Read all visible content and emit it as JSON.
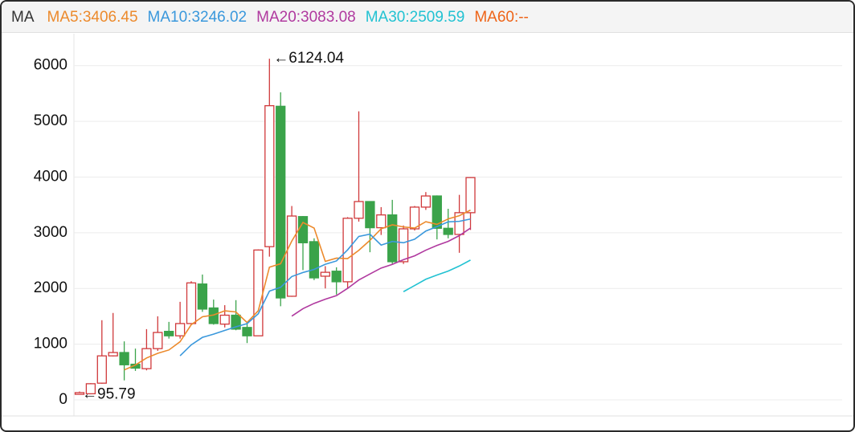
{
  "chart_data": {
    "type": "candlestick",
    "legend_title": "MA",
    "categories": [
      null,
      null,
      null,
      null,
      null,
      null,
      null,
      null,
      null,
      null,
      null,
      null,
      null,
      null,
      null,
      null,
      null,
      null,
      null,
      null,
      null,
      null,
      null,
      null,
      null,
      null,
      null,
      null,
      null,
      null,
      null,
      null,
      null,
      null,
      null,
      null
    ],
    "open": [
      100,
      110,
      300,
      790,
      850,
      640,
      560,
      920,
      1230,
      1150,
      1370,
      2080,
      1650,
      1360,
      1520,
      1300,
      1150,
      2750,
      5270,
      1860,
      3290,
      2840,
      2220,
      2310,
      2120,
      3260,
      3560,
      3090,
      3320,
      2480,
      3070,
      3460,
      3660,
      3080,
      2970,
      3360
    ],
    "close": [
      130,
      290,
      790,
      850,
      630,
      570,
      920,
      1210,
      1150,
      1370,
      2100,
      1630,
      1370,
      1520,
      1270,
      1150,
      2690,
      5280,
      1830,
      3300,
      2820,
      2190,
      2290,
      2120,
      3260,
      3560,
      3090,
      3320,
      2480,
      3070,
      3460,
      3660,
      3080,
      2970,
      3360,
      3990
    ],
    "high": [
      150,
      300,
      1430,
      1560,
      1050,
      920,
      1270,
      1500,
      1400,
      1760,
      2130,
      2250,
      1800,
      1700,
      1790,
      1400,
      2700,
      6124.04,
      5520,
      3480,
      3300,
      2900,
      2400,
      2380,
      3280,
      5180,
      3560,
      3460,
      3590,
      3130,
      3480,
      3730,
      3670,
      3430,
      3680,
      4000
    ],
    "low": [
      95.79,
      100,
      290,
      780,
      350,
      520,
      530,
      880,
      1100,
      1100,
      1360,
      1580,
      1350,
      1300,
      1250,
      1020,
      1150,
      2570,
      1680,
      1850,
      2330,
      2150,
      2000,
      1890,
      1990,
      3200,
      2650,
      2960,
      2440,
      2440,
      3040,
      3410,
      2880,
      2900,
      2640,
      3050
    ],
    "up_color": "#d0393b",
    "down_color": "#3aa34a",
    "series": [
      {
        "name": "MA5:3406.45",
        "color": "#ec8a2c",
        "values": [
          null,
          null,
          null,
          null,
          538,
          626,
          752,
          836,
          896,
          1044,
          1350,
          1492,
          1524,
          1598,
          1578,
          1388,
          1600,
          2382,
          2444,
          2850,
          3184,
          3084,
          2486,
          2544,
          2536,
          2684,
          2864,
          3070,
          3142,
          3104,
          3084,
          3198,
          3150,
          3248,
          3306,
          3406.45
        ]
      },
      {
        "name": "MA10:3246.02",
        "color": "#3a98dc",
        "values": [
          null,
          null,
          null,
          null,
          null,
          null,
          null,
          null,
          null,
          791,
          988,
          1122,
          1180,
          1247,
          1311,
          1369,
          1546,
          1953,
          2021,
          2214,
          2286,
          2342,
          2434,
          2494,
          2693,
          2934,
          2974,
          2778,
          2843,
          2820,
          2884,
          3031,
          3110,
          3195,
          3205,
          3246.02
        ]
      },
      {
        "name": "MA20:3083.08",
        "color": "#b0399f",
        "values": [
          null,
          null,
          null,
          null,
          null,
          null,
          null,
          null,
          null,
          null,
          null,
          null,
          null,
          null,
          null,
          null,
          null,
          null,
          null,
          1503,
          1637,
          1732,
          1807,
          1871,
          2002,
          2152,
          2260,
          2366,
          2432,
          2517,
          2585,
          2687,
          2772,
          2845,
          2949,
          3083.08
        ]
      },
      {
        "name": "MA30:2509.59",
        "color": "#22c2d2",
        "values": [
          null,
          null,
          null,
          null,
          null,
          null,
          null,
          null,
          null,
          null,
          null,
          null,
          null,
          null,
          null,
          null,
          null,
          null,
          null,
          null,
          null,
          null,
          null,
          null,
          null,
          null,
          null,
          null,
          null,
          1942,
          2053,
          2165,
          2241,
          2312,
          2403,
          2509.59
        ]
      },
      {
        "name": "MA60:--",
        "color": "#ee6418",
        "values": [
          null,
          null,
          null,
          null,
          null,
          null,
          null,
          null,
          null,
          null,
          null,
          null,
          null,
          null,
          null,
          null,
          null,
          null,
          null,
          null,
          null,
          null,
          null,
          null,
          null,
          null,
          null,
          null,
          null,
          null,
          null,
          null,
          null,
          null,
          null,
          null
        ]
      }
    ],
    "annotations": [
      "←6124.04",
      "←95.79"
    ],
    "ylim": [
      0,
      6500
    ],
    "yticks": [
      0,
      1000,
      2000,
      3000,
      4000,
      5000,
      6000
    ],
    "grid": true
  }
}
